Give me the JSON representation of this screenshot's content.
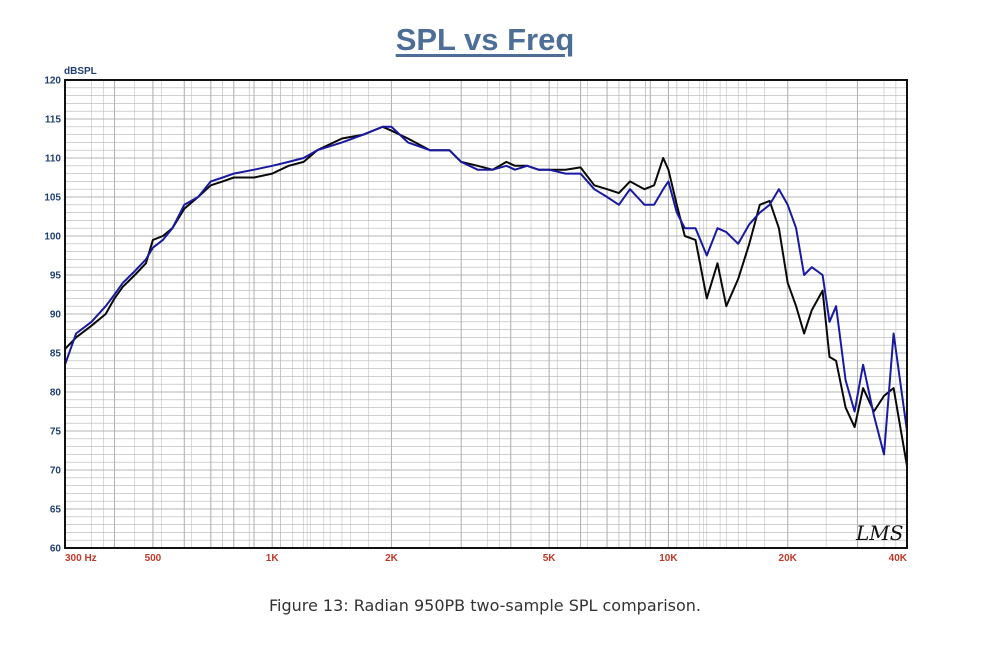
{
  "chart_data": {
    "type": "line",
    "title": "SPL vs Freq",
    "ylabel": "dBSPL",
    "xscale": "log",
    "xlim": [
      300,
      40000
    ],
    "ylim": [
      60,
      120
    ],
    "grid": true,
    "yticks": [
      60,
      65,
      70,
      75,
      80,
      85,
      90,
      95,
      100,
      105,
      110,
      115,
      120
    ],
    "yticklabels": [
      "60",
      "65",
      "70",
      "75",
      "80",
      "85",
      "90",
      "95",
      "100",
      "105",
      "110",
      "115",
      "120"
    ],
    "xticks": [
      300,
      500,
      1000,
      2000,
      5000,
      10000,
      20000,
      40000
    ],
    "xticklabels": [
      "300  Hz",
      "500",
      "1K",
      "2K",
      "5K",
      "10K",
      "20K",
      "40K"
    ],
    "watermark": "LMS",
    "series": [
      {
        "color": "#0a0a0a",
        "x": [
          300,
          320,
          350,
          380,
          400,
          420,
          450,
          480,
          500,
          530,
          560,
          600,
          650,
          700,
          750,
          800,
          900,
          1000,
          1100,
          1200,
          1300,
          1500,
          1700,
          1900,
          2000,
          2200,
          2500,
          2800,
          3000,
          3300,
          3600,
          3900,
          4100,
          4400,
          4700,
          5000,
          5500,
          6000,
          6500,
          7000,
          7500,
          8000,
          8700,
          9200,
          9700,
          10000,
          10500,
          11000,
          11700,
          12500,
          13300,
          14000,
          15000,
          16000,
          17000,
          18000,
          19000,
          20000,
          21000,
          22000,
          23000,
          24500,
          25500,
          26500,
          28000,
          29500,
          31000,
          33000,
          35000,
          37000,
          40000
        ],
        "values": [
          85.5,
          87,
          88.5,
          90,
          92,
          93.5,
          95,
          96.5,
          99.5,
          100,
          101,
          103.5,
          105,
          106.5,
          107,
          107.5,
          107.5,
          108,
          109,
          109.5,
          111,
          112.5,
          113,
          114,
          113.5,
          112.5,
          111,
          111,
          109.5,
          109,
          108.5,
          109.5,
          109,
          109,
          108.5,
          108.5,
          108.5,
          108.8,
          106.5,
          106,
          105.5,
          107,
          106,
          106.5,
          110,
          108.5,
          104,
          100,
          99.5,
          92,
          96.5,
          91,
          94.5,
          99,
          104,
          104.5,
          101,
          94,
          91,
          87.5,
          90.5,
          93,
          84.5,
          84,
          78,
          75.5,
          80.5,
          77.5,
          79.5,
          80.5,
          70.5
        ]
      },
      {
        "color": "#1a1aa0",
        "x": [
          300,
          320,
          350,
          380,
          400,
          420,
          450,
          480,
          500,
          530,
          560,
          600,
          650,
          700,
          750,
          800,
          900,
          1000,
          1100,
          1200,
          1300,
          1500,
          1700,
          1900,
          2000,
          2200,
          2500,
          2800,
          3000,
          3300,
          3600,
          3900,
          4100,
          4400,
          4700,
          5000,
          5500,
          6000,
          6500,
          7000,
          7500,
          8000,
          8700,
          9200,
          9700,
          10000,
          10500,
          11000,
          11700,
          12500,
          13300,
          14000,
          15000,
          16000,
          17000,
          18000,
          19000,
          20000,
          21000,
          22000,
          23000,
          24500,
          25500,
          26500,
          28000,
          29500,
          31000,
          33000,
          35000,
          37000,
          40000
        ],
        "values": [
          83.5,
          87.5,
          89,
          91,
          92.5,
          94,
          95.5,
          97,
          98.5,
          99.5,
          101,
          104,
          105,
          107,
          107.5,
          108,
          108.5,
          109,
          109.5,
          110,
          111,
          112,
          113,
          114,
          114,
          112,
          111,
          111,
          109.5,
          108.5,
          108.5,
          109,
          108.5,
          109,
          108.5,
          108.5,
          108,
          108,
          106,
          105,
          104,
          106,
          104,
          104,
          106,
          107,
          103,
          101,
          101,
          97.5,
          101,
          100.5,
          99,
          101.5,
          103,
          104,
          106,
          104,
          101,
          95,
          96,
          95,
          89,
          91,
          81.5,
          77.5,
          83.5,
          77,
          72,
          87.5,
          75
        ]
      }
    ]
  },
  "caption": "Figure 13: Radian 950PB two-sample SPL comparison.",
  "colors": {
    "title": "#4d6e96",
    "y_tick_labels": "#1f3f6f",
    "x_tick_labels": "#c0392b",
    "grid": "#b4b4b4"
  }
}
